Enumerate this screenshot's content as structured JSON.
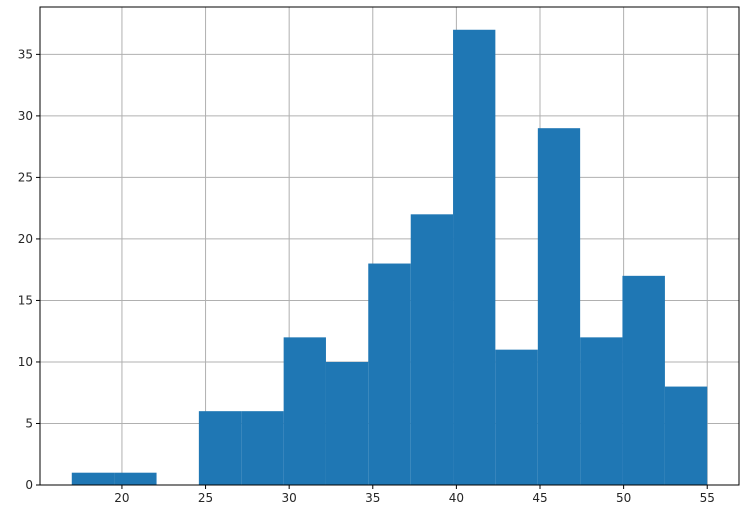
{
  "chart_data": {
    "type": "bar",
    "subtype": "histogram",
    "bins": [
      {
        "start": 17.0,
        "end": 19.53,
        "count": 1
      },
      {
        "start": 19.53,
        "end": 22.07,
        "count": 1
      },
      {
        "start": 22.07,
        "end": 24.6,
        "count": 0
      },
      {
        "start": 24.6,
        "end": 27.13,
        "count": 6
      },
      {
        "start": 27.13,
        "end": 29.67,
        "count": 6
      },
      {
        "start": 29.67,
        "end": 32.2,
        "count": 12
      },
      {
        "start": 32.2,
        "end": 34.73,
        "count": 10
      },
      {
        "start": 34.73,
        "end": 37.27,
        "count": 18
      },
      {
        "start": 37.27,
        "end": 39.8,
        "count": 22
      },
      {
        "start": 39.8,
        "end": 42.33,
        "count": 37
      },
      {
        "start": 42.33,
        "end": 44.87,
        "count": 11
      },
      {
        "start": 44.87,
        "end": 47.4,
        "count": 29
      },
      {
        "start": 47.4,
        "end": 49.93,
        "count": 12
      },
      {
        "start": 49.93,
        "end": 52.47,
        "count": 17
      },
      {
        "start": 52.47,
        "end": 55.0,
        "count": 8
      }
    ],
    "xlim": [
      15.1,
      56.9
    ],
    "ylim": [
      0,
      38.85
    ],
    "x_ticks": [
      "20",
      "25",
      "30",
      "35",
      "40",
      "45",
      "50",
      "55"
    ],
    "y_ticks": [
      "0",
      "5",
      "10",
      "15",
      "20",
      "25",
      "30",
      "35"
    ],
    "title": "",
    "xlabel": "",
    "ylabel": "",
    "grid": true,
    "bar_color": "#1f77b4",
    "grid_color": "#b0b0b0",
    "axis_color": "#000000"
  }
}
